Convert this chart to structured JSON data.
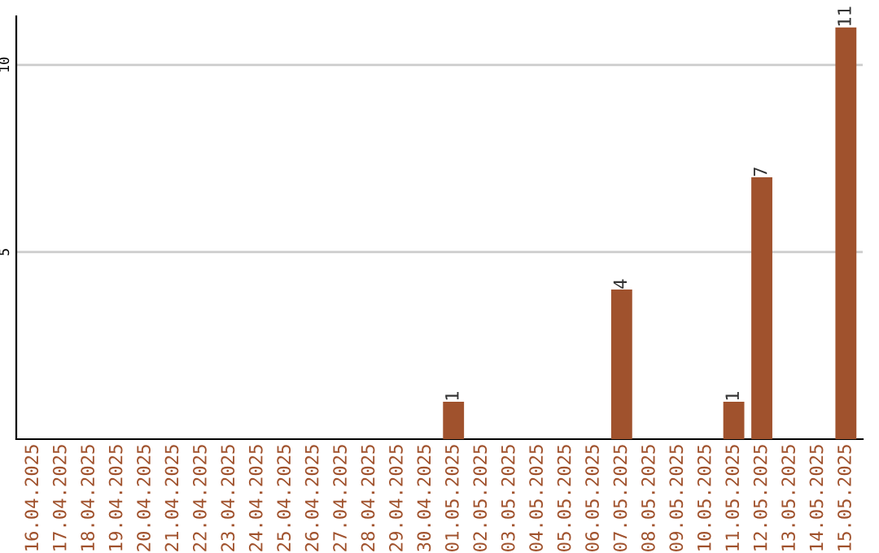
{
  "chart_data": {
    "type": "bar",
    "categories": [
      "16.04.2025",
      "17.04.2025",
      "18.04.2025",
      "19.04.2025",
      "20.04.2025",
      "21.04.2025",
      "22.04.2025",
      "23.04.2025",
      "24.04.2025",
      "25.04.2025",
      "26.04.2025",
      "27.04.2025",
      "28.04.2025",
      "29.04.2025",
      "30.04.2025",
      "01.05.2025",
      "02.05.2025",
      "03.05.2025",
      "04.05.2025",
      "05.05.2025",
      "06.05.2025",
      "07.05.2025",
      "08.05.2025",
      "09.05.2025",
      "10.05.2025",
      "11.05.2025",
      "12.05.2025",
      "13.05.2025",
      "14.05.2025",
      "15.05.2025"
    ],
    "values": [
      0,
      0,
      0,
      0,
      0,
      0,
      0,
      0,
      0,
      0,
      0,
      0,
      0,
      0,
      0,
      1,
      0,
      0,
      0,
      0,
      0,
      4,
      0,
      0,
      0,
      1,
      7,
      0,
      0,
      11
    ],
    "value_labels": [
      null,
      null,
      null,
      null,
      null,
      null,
      null,
      null,
      null,
      null,
      null,
      null,
      null,
      null,
      null,
      "1",
      null,
      null,
      null,
      null,
      null,
      "4",
      null,
      null,
      null,
      "1",
      "7",
      null,
      null,
      "11"
    ],
    "color": "#a0522d",
    "ylim": [
      0,
      11.3
    ],
    "yticks": [
      5,
      10
    ],
    "grid": "y"
  }
}
